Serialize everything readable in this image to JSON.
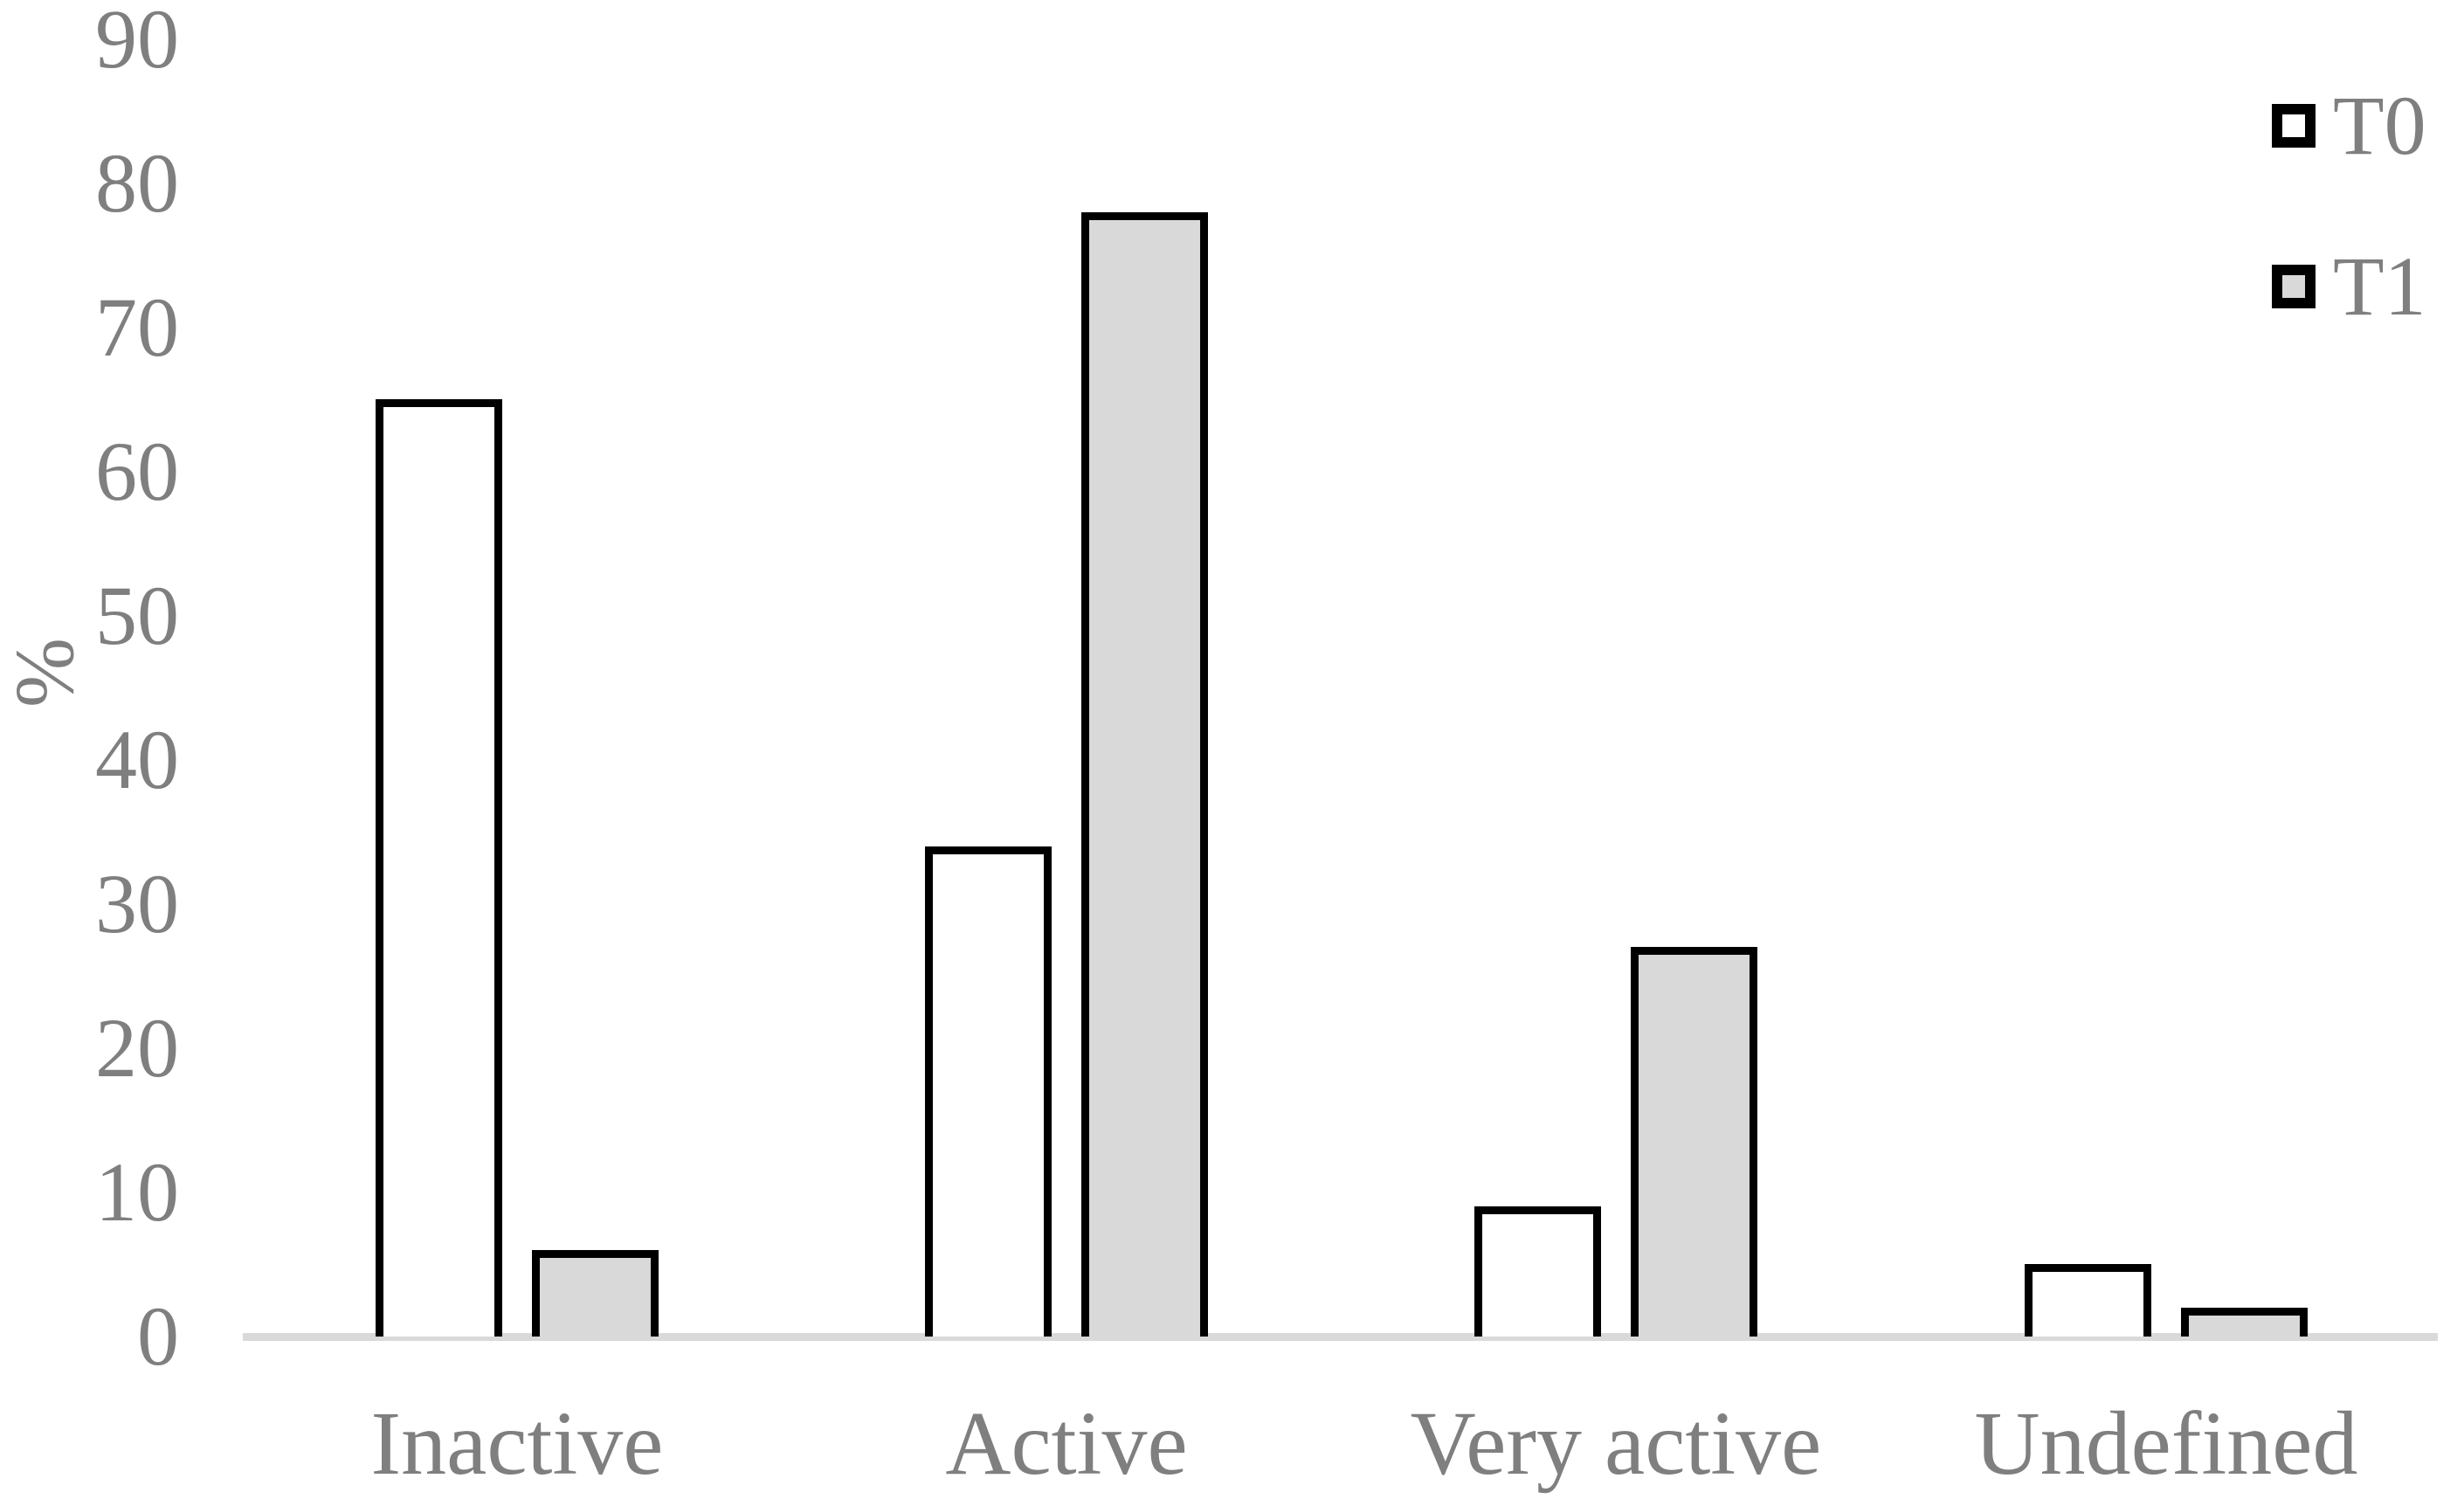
{
  "chart_data": {
    "type": "bar",
    "title": "",
    "categories": [
      "Inactive",
      "Active",
      "Very active",
      "Undefined"
    ],
    "series": [
      {
        "name": "T0",
        "values": [
          65,
          34,
          9,
          5
        ]
      },
      {
        "name": "T1",
        "values": [
          6,
          78,
          27,
          2
        ]
      }
    ],
    "ylabel": "%",
    "xlabel": "",
    "ylim": [
      0,
      90
    ],
    "yticks": [
      0,
      10,
      20,
      30,
      40,
      50,
      60,
      70,
      80,
      90
    ],
    "grid": false,
    "legend_position": "top-right",
    "legend": [
      "T0",
      "T1"
    ],
    "colors": {
      "t0_fill": "#ffffff",
      "t1_fill": "#d9d9d9",
      "bar_border": "#000000",
      "axis_line": "#d9d9d9",
      "text": "#7f7f7f"
    }
  }
}
